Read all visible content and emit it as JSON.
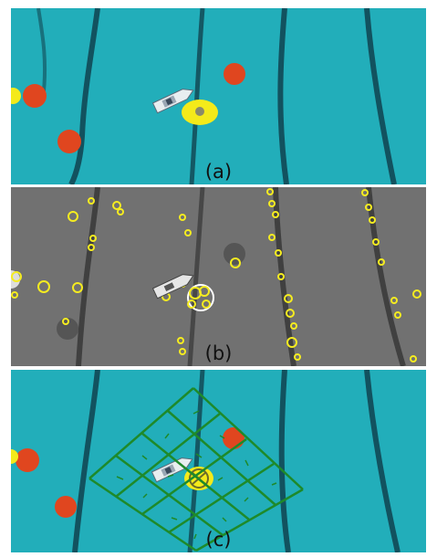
{
  "panels": [
    {
      "id": "a",
      "caption": "(a)"
    },
    {
      "id": "b",
      "caption": "(b)"
    },
    {
      "id": "c",
      "caption": "(c)"
    }
  ],
  "colors": {
    "water": "#1fa9b6",
    "water_dark": "#0b7f8e",
    "lane_line": "#0e3340",
    "buoy": "#e0461f",
    "yellow_marker": "#f4ea1a",
    "grid_line": "#1e8a2a",
    "feature_yellow": "#f5ec20",
    "gray_background": "#6b6b6b"
  }
}
